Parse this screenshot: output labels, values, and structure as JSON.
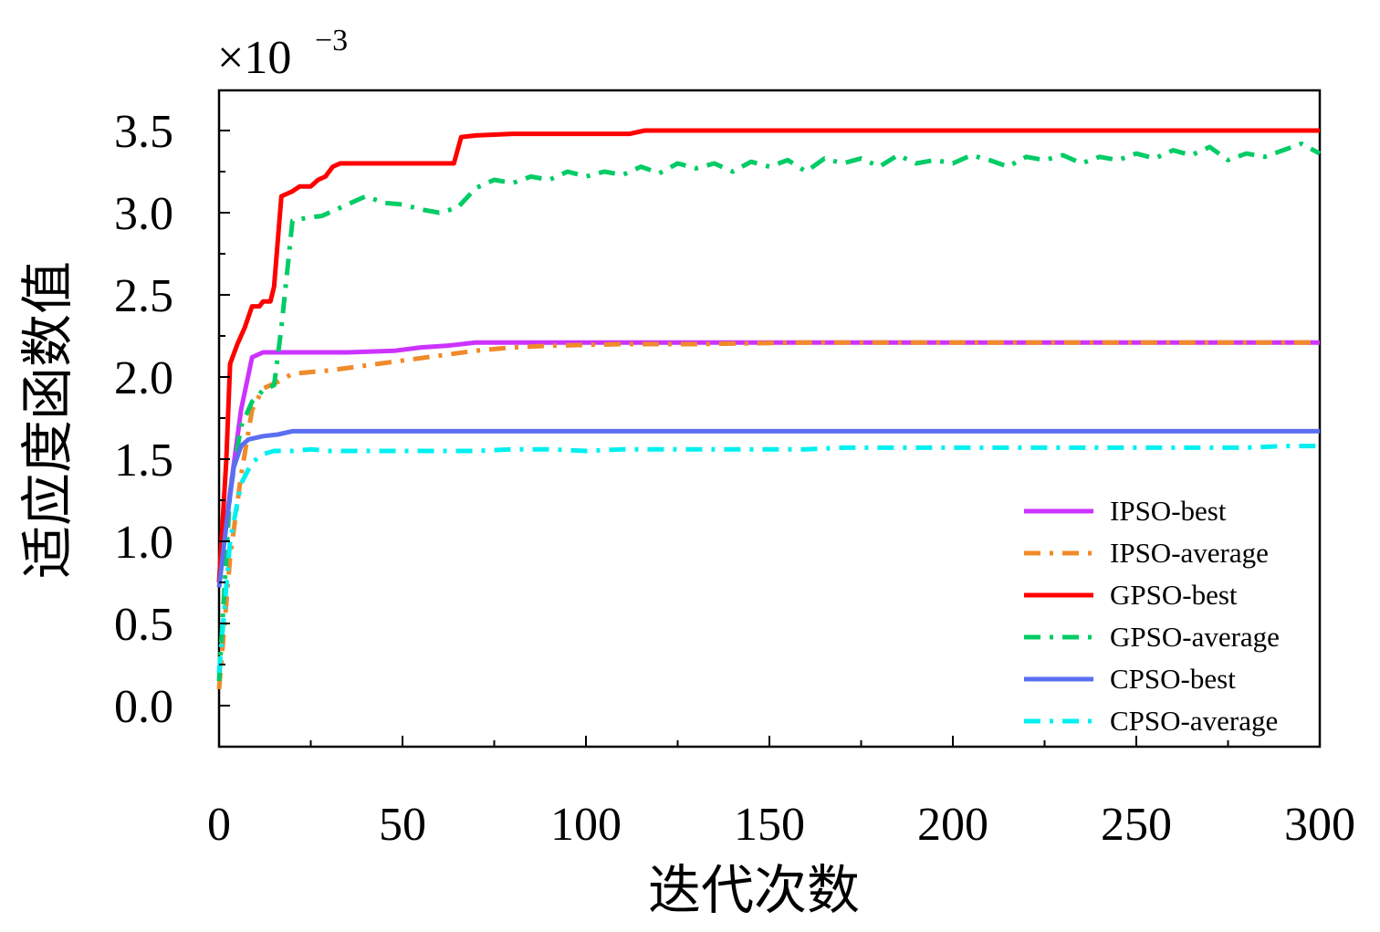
{
  "chart_data": {
    "type": "line",
    "title": "",
    "xlabel": "迭代次数",
    "ylabel": "适应度函数值",
    "multiplier": {
      "base": "×10",
      "exponent": "−3"
    },
    "xlim": [
      0,
      300
    ],
    "ylim": [
      -0.25,
      3.75
    ],
    "xticks": [
      0,
      50,
      100,
      150,
      200,
      250,
      300
    ],
    "xtick_labels": [
      "0",
      "50",
      "100",
      "150",
      "200",
      "250",
      "300"
    ],
    "yticks": [
      0.0,
      0.5,
      1.0,
      1.5,
      2.0,
      2.5,
      3.0,
      3.5
    ],
    "ytick_labels": [
      "0.0",
      "0.5",
      "1.0",
      "1.5",
      "2.0",
      "2.5",
      "3.0",
      "3.5"
    ],
    "grid": false,
    "legend_position": "bottom-right",
    "series": [
      {
        "name": "IPSO-best",
        "color": "#cc33ff",
        "style": "solid",
        "points": [
          [
            0,
            0.75
          ],
          [
            3,
            1.3
          ],
          [
            6,
            1.8
          ],
          [
            9,
            2.12
          ],
          [
            12,
            2.15
          ],
          [
            20,
            2.15
          ],
          [
            35,
            2.15
          ],
          [
            48,
            2.16
          ],
          [
            55,
            2.18
          ],
          [
            62,
            2.19
          ],
          [
            70,
            2.21
          ],
          [
            100,
            2.21
          ],
          [
            150,
            2.21
          ],
          [
            200,
            2.21
          ],
          [
            250,
            2.21
          ],
          [
            300,
            2.21
          ]
        ]
      },
      {
        "name": "IPSO-average",
        "color": "#f08a2a",
        "style": "dashdot",
        "points": [
          [
            0,
            0.1
          ],
          [
            3,
            0.9
          ],
          [
            6,
            1.4
          ],
          [
            9,
            1.8
          ],
          [
            12,
            1.93
          ],
          [
            16,
            1.97
          ],
          [
            20,
            2.02
          ],
          [
            30,
            2.04
          ],
          [
            40,
            2.07
          ],
          [
            50,
            2.1
          ],
          [
            60,
            2.13
          ],
          [
            70,
            2.16
          ],
          [
            80,
            2.18
          ],
          [
            90,
            2.19
          ],
          [
            110,
            2.2
          ],
          [
            130,
            2.2
          ],
          [
            160,
            2.21
          ],
          [
            200,
            2.21
          ],
          [
            250,
            2.21
          ],
          [
            300,
            2.21
          ]
        ]
      },
      {
        "name": "GPSO-best",
        "color": "#ff0000",
        "style": "solid",
        "points": [
          [
            0,
            0.75
          ],
          [
            2,
            1.5
          ],
          [
            3,
            2.08
          ],
          [
            5,
            2.2
          ],
          [
            7,
            2.3
          ],
          [
            9,
            2.43
          ],
          [
            11,
            2.43
          ],
          [
            12,
            2.46
          ],
          [
            14,
            2.46
          ],
          [
            15,
            2.55
          ],
          [
            17,
            3.1
          ],
          [
            20,
            3.13
          ],
          [
            22,
            3.16
          ],
          [
            25,
            3.16
          ],
          [
            27,
            3.2
          ],
          [
            29,
            3.22
          ],
          [
            31,
            3.28
          ],
          [
            33,
            3.3
          ],
          [
            40,
            3.3
          ],
          [
            50,
            3.3
          ],
          [
            64,
            3.3
          ],
          [
            66,
            3.46
          ],
          [
            70,
            3.47
          ],
          [
            80,
            3.48
          ],
          [
            100,
            3.48
          ],
          [
            112,
            3.48
          ],
          [
            116,
            3.5
          ],
          [
            150,
            3.5
          ],
          [
            200,
            3.5
          ],
          [
            250,
            3.5
          ],
          [
            300,
            3.5
          ]
        ]
      },
      {
        "name": "GPSO-average",
        "color": "#00cc66",
        "style": "dashdot",
        "points": [
          [
            0,
            0.15
          ],
          [
            3,
            1.3
          ],
          [
            6,
            1.7
          ],
          [
            9,
            1.85
          ],
          [
            12,
            1.92
          ],
          [
            15,
            1.95
          ],
          [
            17,
            2.3
          ],
          [
            20,
            2.95
          ],
          [
            24,
            2.97
          ],
          [
            28,
            2.98
          ],
          [
            32,
            3.02
          ],
          [
            36,
            3.06
          ],
          [
            40,
            3.1
          ],
          [
            45,
            3.06
          ],
          [
            50,
            3.05
          ],
          [
            55,
            3.02
          ],
          [
            60,
            3.0
          ],
          [
            65,
            3.03
          ],
          [
            70,
            3.15
          ],
          [
            75,
            3.2
          ],
          [
            80,
            3.18
          ],
          [
            85,
            3.22
          ],
          [
            90,
            3.2
          ],
          [
            95,
            3.25
          ],
          [
            100,
            3.22
          ],
          [
            105,
            3.25
          ],
          [
            110,
            3.23
          ],
          [
            115,
            3.28
          ],
          [
            120,
            3.24
          ],
          [
            125,
            3.3
          ],
          [
            130,
            3.27
          ],
          [
            135,
            3.3
          ],
          [
            140,
            3.25
          ],
          [
            145,
            3.31
          ],
          [
            150,
            3.28
          ],
          [
            155,
            3.32
          ],
          [
            160,
            3.25
          ],
          [
            165,
            3.33
          ],
          [
            170,
            3.3
          ],
          [
            175,
            3.33
          ],
          [
            180,
            3.28
          ],
          [
            185,
            3.35
          ],
          [
            190,
            3.3
          ],
          [
            195,
            3.32
          ],
          [
            200,
            3.3
          ],
          [
            205,
            3.35
          ],
          [
            210,
            3.32
          ],
          [
            215,
            3.28
          ],
          [
            220,
            3.34
          ],
          [
            225,
            3.32
          ],
          [
            230,
            3.35
          ],
          [
            235,
            3.3
          ],
          [
            240,
            3.34
          ],
          [
            245,
            3.32
          ],
          [
            250,
            3.36
          ],
          [
            255,
            3.33
          ],
          [
            260,
            3.38
          ],
          [
            265,
            3.35
          ],
          [
            270,
            3.4
          ],
          [
            275,
            3.32
          ],
          [
            280,
            3.36
          ],
          [
            285,
            3.34
          ],
          [
            290,
            3.38
          ],
          [
            295,
            3.42
          ],
          [
            300,
            3.36
          ]
        ]
      },
      {
        "name": "CPSO-best",
        "color": "#5a6ff0",
        "style": "solid",
        "points": [
          [
            0,
            0.72
          ],
          [
            2,
            1.1
          ],
          [
            4,
            1.45
          ],
          [
            6,
            1.58
          ],
          [
            8,
            1.62
          ],
          [
            12,
            1.64
          ],
          [
            16,
            1.65
          ],
          [
            20,
            1.67
          ],
          [
            40,
            1.67
          ],
          [
            100,
            1.67
          ],
          [
            150,
            1.67
          ],
          [
            200,
            1.67
          ],
          [
            250,
            1.67
          ],
          [
            300,
            1.67
          ]
        ]
      },
      {
        "name": "CPSO-average",
        "color": "#00f0f0",
        "style": "dashdot",
        "points": [
          [
            0,
            0.2
          ],
          [
            3,
            1.0
          ],
          [
            6,
            1.35
          ],
          [
            9,
            1.48
          ],
          [
            12,
            1.53
          ],
          [
            15,
            1.55
          ],
          [
            20,
            1.55
          ],
          [
            25,
            1.56
          ],
          [
            30,
            1.55
          ],
          [
            40,
            1.55
          ],
          [
            50,
            1.55
          ],
          [
            60,
            1.55
          ],
          [
            70,
            1.55
          ],
          [
            80,
            1.56
          ],
          [
            90,
            1.56
          ],
          [
            100,
            1.55
          ],
          [
            110,
            1.56
          ],
          [
            120,
            1.56
          ],
          [
            130,
            1.56
          ],
          [
            140,
            1.56
          ],
          [
            150,
            1.56
          ],
          [
            160,
            1.56
          ],
          [
            170,
            1.57
          ],
          [
            180,
            1.57
          ],
          [
            190,
            1.57
          ],
          [
            200,
            1.57
          ],
          [
            210,
            1.57
          ],
          [
            220,
            1.57
          ],
          [
            230,
            1.57
          ],
          [
            240,
            1.57
          ],
          [
            250,
            1.57
          ],
          [
            260,
            1.57
          ],
          [
            270,
            1.57
          ],
          [
            280,
            1.57
          ],
          [
            290,
            1.58
          ],
          [
            300,
            1.58
          ]
        ]
      }
    ]
  }
}
